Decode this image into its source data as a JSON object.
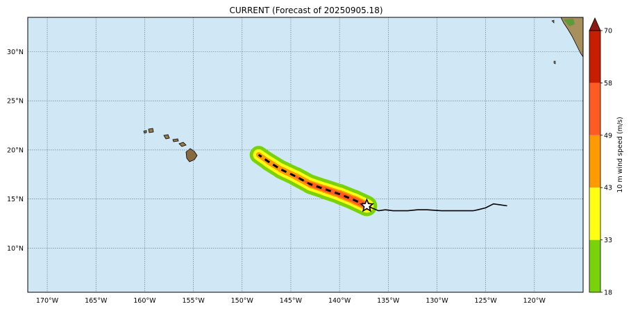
{
  "title": "CURRENT (Forecast of 20250905.18)",
  "map": {
    "lon_range": [
      -172,
      -115
    ],
    "lat_range": [
      5.5,
      33.5
    ],
    "x_ticks": [
      {
        "lon": -170,
        "label": "170°W"
      },
      {
        "lon": -165,
        "label": "165°W"
      },
      {
        "lon": -160,
        "label": "160°W"
      },
      {
        "lon": -155,
        "label": "155°W"
      },
      {
        "lon": -150,
        "label": "150°W"
      },
      {
        "lon": -145,
        "label": "145°W"
      },
      {
        "lon": -140,
        "label": "140°W"
      },
      {
        "lon": -135,
        "label": "135°W"
      },
      {
        "lon": -130,
        "label": "130°W"
      },
      {
        "lon": -125,
        "label": "125°W"
      },
      {
        "lon": -120,
        "label": "120°W"
      }
    ],
    "y_ticks": [
      {
        "lat": 10,
        "label": "10°N"
      },
      {
        "lat": 15,
        "label": "15°N"
      },
      {
        "lat": 20,
        "label": "20°N"
      },
      {
        "lat": 25,
        "label": "25°N"
      },
      {
        "lat": 30,
        "label": "30°N"
      }
    ],
    "colors": {
      "ocean": "#d0e7f6",
      "grid": "#5a6a78",
      "land": "#b89a6a",
      "track": "#000000",
      "storm_marker": "#ffffff"
    },
    "past_track": [
      [
        -122.8,
        14.3
      ],
      [
        -123.5,
        14.4
      ],
      [
        -124.2,
        14.5
      ],
      [
        -125.0,
        14.1
      ],
      [
        -125.8,
        13.9
      ],
      [
        -126.3,
        13.8
      ],
      [
        -128.0,
        13.8
      ],
      [
        -129.5,
        13.8
      ],
      [
        -131.0,
        13.9
      ],
      [
        -132.0,
        13.9
      ],
      [
        -133.0,
        13.8
      ],
      [
        -134.5,
        13.8
      ],
      [
        -135.3,
        13.9
      ],
      [
        -136.0,
        13.8
      ],
      [
        -137.2,
        14.3
      ]
    ],
    "forecast_track": [
      [
        -137.2,
        14.3
      ],
      [
        -138.5,
        14.9
      ],
      [
        -140.0,
        15.5
      ],
      [
        -141.5,
        16.0
      ],
      [
        -143.0,
        16.5
      ],
      [
        -144.5,
        17.3
      ],
      [
        -146.0,
        18.0
      ],
      [
        -147.3,
        18.8
      ],
      [
        -148.3,
        19.5
      ]
    ],
    "current_position": {
      "lon": -137.2,
      "lat": 14.3
    }
  },
  "colorbar": {
    "label": "10 m wind speed (m/s)",
    "ticks": [
      "18",
      "33",
      "43",
      "49",
      "58",
      "70"
    ],
    "bands": [
      {
        "from": 18,
        "to": 33,
        "color": "#7ad20a"
      },
      {
        "from": 33,
        "to": 43,
        "color": "#ffff14"
      },
      {
        "from": 43,
        "to": 49,
        "color": "#ff9a00"
      },
      {
        "from": 49,
        "to": 58,
        "color": "#ff5b22"
      },
      {
        "from": 58,
        "to": 70,
        "color": "#c81e00"
      }
    ],
    "extend_color": "#8c1a10"
  }
}
